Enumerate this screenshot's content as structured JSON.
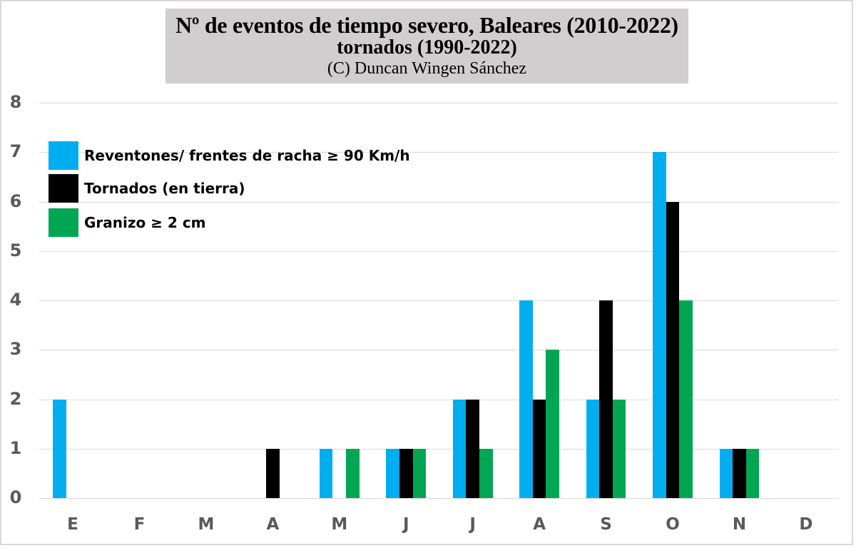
{
  "title": {
    "line1": "Nº de eventos de tiempo severo, Baleares (2010-2022)",
    "line2": "tornados (1990-2022)",
    "line3": "(C) Duncan Wingen Sánchez"
  },
  "legend": [
    {
      "label": "Reventones/ frentes de racha ≥ 90 Km/h",
      "color": "#00aeef"
    },
    {
      "label": "Tornados (en tierra)",
      "color": "#000000"
    },
    {
      "label": "Granizo ≥ 2 cm",
      "color": "#00a651"
    }
  ],
  "y_ticks": [
    "0",
    "1",
    "2",
    "3",
    "4",
    "5",
    "6",
    "7",
    "8"
  ],
  "x_ticks": [
    "E",
    "F",
    "M",
    "A",
    "M",
    "J",
    "J",
    "A",
    "S",
    "O",
    "N",
    "D"
  ],
  "chart_data": {
    "type": "bar",
    "title": "Nº de eventos de tiempo severo, Baleares (2010-2022) tornados (1990-2022)",
    "subtitle": "(C) Duncan Wingen Sánchez",
    "xlabel": "",
    "ylabel": "",
    "ylim": [
      0,
      8
    ],
    "grid": true,
    "legend_position": "upper-left",
    "categories": [
      "E",
      "F",
      "M",
      "A",
      "M",
      "J",
      "J",
      "A",
      "S",
      "O",
      "N",
      "D"
    ],
    "series": [
      {
        "name": "Reventones/ frentes de racha ≥ 90 Km/h",
        "color": "#00aeef",
        "values": [
          2,
          0,
          0,
          0,
          1,
          1,
          2,
          4,
          2,
          7,
          1,
          0
        ]
      },
      {
        "name": "Tornados (en tierra)",
        "color": "#000000",
        "values": [
          0,
          0,
          0,
          1,
          0,
          1,
          2,
          2,
          4,
          6,
          1,
          0
        ]
      },
      {
        "name": "Granizo ≥ 2 cm",
        "color": "#00a651",
        "values": [
          0,
          0,
          0,
          0,
          1,
          1,
          1,
          3,
          2,
          4,
          1,
          0
        ]
      }
    ]
  }
}
